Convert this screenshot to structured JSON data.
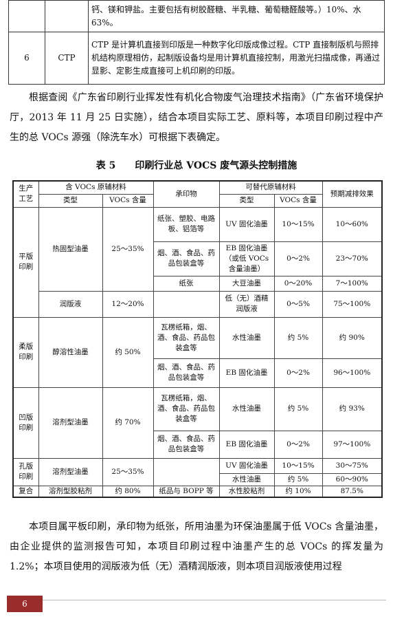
{
  "top_table": {
    "rows": [
      {
        "content": "钙、镁和钾盐。主要包括有树胶醛糖、半乳糖、葡萄糖醛酸等。）10%、水 63%。"
      },
      {
        "no": "6",
        "name": "CTP",
        "content": "CTP 是计算机直接到印版是一种数字化印版成像过程。CTP 直接制版机与照排机结构原理相仿，起制版设备均是用计算机直接控制，用激光扫描成像，再通过显影、定影生成直接可上机印刷的印版。"
      }
    ]
  },
  "paragraph_1": "根据查阅《广东省印刷行业挥发性有机化合物废气治理技术指南》（广东省环境保护厅，2013 年 11 月 25 日实施），结合本项目实际工艺、原料等，本项目印刷过程中产生的总 VOCs 源强（除洗车水）可根据下表确定。",
  "table_caption": {
    "label": "表 5",
    "title": "印刷行业总 VOCS 废气源头控制措施"
  },
  "table": {
    "header": {
      "process": "生产工艺",
      "voc_material": "含 VOCs 原辅材料",
      "voc_type": "类型",
      "voc_content": "VOCs 含量",
      "substrate": "承印物",
      "alt_material": "可替代原辅材料",
      "alt_type": "类型",
      "alt_content": "VOCs 含量",
      "effect": "预期减排效果"
    },
    "rows": [
      {
        "process": "平版印刷",
        "type": "热固型油墨",
        "content": "25～35%",
        "substrate": "纸张、塑胶、电路板、铝箔等",
        "alt_type": "UV 固化油墨",
        "alt_content": "10～15%",
        "effect": "10～60%"
      },
      {
        "substrate": "烟、酒、食品、药品包装盒等",
        "alt_type": "EB 固化油墨（或低 VOCs 含量油墨）",
        "alt_content": "0～2%",
        "effect": "23～70%"
      },
      {
        "substrate": "纸张",
        "alt_type": "大豆油墨",
        "alt_content": "0～20%",
        "effect": "7～100%"
      },
      {
        "type": "润版液",
        "content": "12～20%",
        "alt_type": "低（无）酒精润版液",
        "alt_content": "0～5%",
        "effect": "75～100%"
      },
      {
        "process": "柔版印刷",
        "type": "醇溶性油墨",
        "content": "约 50%",
        "substrate": "瓦楞纸箱，烟、酒、食品、药品包装盒等",
        "alt_type": "水性油墨",
        "alt_content": "约 5%",
        "effect": "约 90%"
      },
      {
        "substrate": "烟、酒、食品、药品包装盒等",
        "alt_type": "EB 固化油墨",
        "alt_content": "0～2%",
        "effect": "96～100%"
      },
      {
        "process": "凹版印刷",
        "type": "溶剂型油墨",
        "content": "约 70%",
        "substrate": "瓦楞纸箱，烟、酒、食品、药品包装盒等",
        "alt_type": "水性油墨",
        "alt_content": "约 5%",
        "effect": "约 93%"
      },
      {
        "substrate": "烟、酒、食品、药品包装盒等",
        "alt_type": "EB 固化油墨",
        "alt_content": "0～2%",
        "effect": "97～100%"
      },
      {
        "process": "孔版印刷",
        "type": "溶剂型油墨",
        "content": "25～35%",
        "alt_type": "UV 固化油墨",
        "alt_content": "10～15%",
        "effect": "30～75%"
      },
      {
        "alt_type": "水性油墨",
        "alt_content": "约 5%",
        "effect": "60～90%"
      },
      {
        "process": "复合",
        "type": "溶剂型胶粘剂",
        "content": "约 80%",
        "substrate": "纸品与 BOPP 等",
        "alt_type": "水性胶粘剂",
        "alt_content": "约 10%",
        "effect": "87.5%"
      }
    ]
  },
  "paragraph_2": "本项目属平板印刷，承印物为纸张，所用油墨为环保油墨属于低 VOCs 含量油墨，由企业提供的监测报告可知，本项目印刷过程中油墨产生的总 VOCs 的挥发量为 1.2%；本项目使用的润版液为低（无）酒精润版液，则本项目润版液使用过程",
  "footer": {
    "page_number": "6"
  }
}
